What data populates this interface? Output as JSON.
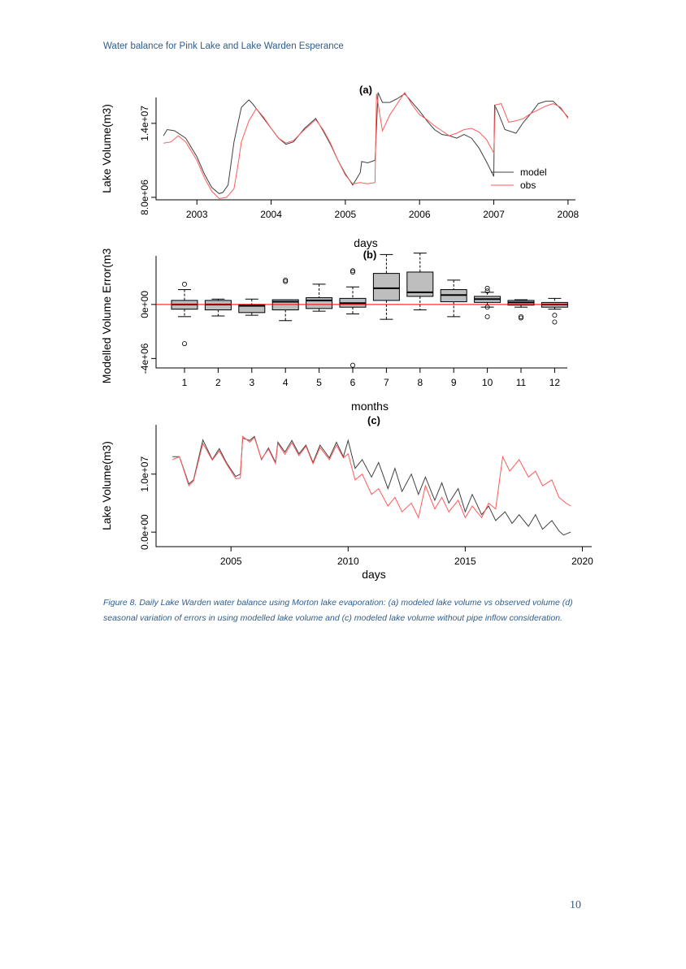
{
  "header": {
    "running_title": "Water balance for Pink Lake and Lake Warden Esperance"
  },
  "caption": {
    "text": "Figure 8. Daily Lake Warden water balance using Morton lake evaporation: (a) modeled lake volume vs observed volume (d) seasonal variation of errors in using modelled lake volume and (c) modeled lake volume without pipe inflow consideration."
  },
  "page": {
    "number": "10"
  },
  "colors": {
    "model": "#404040",
    "obs": "#ff5a5a",
    "box_fill": "#bebebe",
    "reference_line": "#ff0000"
  },
  "chart_data": [
    {
      "type": "line",
      "title": "(a)",
      "xlabel": "days",
      "ylabel": "Lake Volume(m3)",
      "xlim": [
        2002.45,
        2008.1
      ],
      "ylim": [
        7800000,
        16100000
      ],
      "x_ticks": [
        2003,
        2004,
        2005,
        2006,
        2007,
        2008
      ],
      "x_tick_labels": [
        "2003",
        "2004",
        "2005",
        "2006",
        "2007",
        "2008"
      ],
      "y_ticks": [
        8000000,
        14000000
      ],
      "y_tick_labels": [
        "8.0e+06",
        "1.4e+07"
      ],
      "legend": {
        "position": "right",
        "entries": [
          "model",
          "obs"
        ]
      },
      "series": [
        {
          "name": "model",
          "color": "#404040",
          "x": [
            2002.55,
            2002.6,
            2002.7,
            2002.85,
            2003.0,
            2003.1,
            2003.2,
            2003.3,
            2003.35,
            2003.42,
            2003.5,
            2003.6,
            2003.7,
            2003.75,
            2003.8,
            2003.9,
            2004.0,
            2004.1,
            2004.2,
            2004.3,
            2004.45,
            2004.6,
            2004.7,
            2004.8,
            2004.9,
            2005.0,
            2005.1,
            2005.2,
            2005.22,
            2005.3,
            2005.4,
            2005.44,
            2005.5,
            2005.6,
            2005.7,
            2005.8,
            2005.9,
            2006.0,
            2006.1,
            2006.2,
            2006.3,
            2006.4,
            2006.5,
            2006.6,
            2006.7,
            2006.8,
            2006.9,
            2007.0,
            2007.01,
            2007.05,
            2007.15,
            2007.3,
            2007.4,
            2007.5,
            2007.6,
            2007.7,
            2007.8,
            2007.9,
            2008.0
          ],
          "values": [
            13000000,
            13500000,
            13400000,
            12800000,
            11300000,
            9900000,
            8800000,
            8300000,
            8400000,
            9000000,
            12500000,
            15300000,
            15900000,
            15600000,
            15200000,
            14400000,
            13600000,
            12800000,
            12300000,
            12500000,
            13600000,
            14400000,
            13400000,
            12300000,
            11000000,
            9900000,
            9000000,
            10000000,
            10900000,
            10800000,
            11000000,
            16500000,
            15700000,
            15700000,
            16000000,
            16400000,
            15700000,
            15000000,
            14200000,
            13500000,
            13100000,
            13000000,
            12800000,
            13100000,
            12800000,
            12000000,
            10900000,
            9700000,
            15500000,
            15000000,
            13500000,
            13200000,
            14100000,
            14800000,
            15600000,
            15800000,
            15800000,
            15200000,
            14500000
          ]
        },
        {
          "name": "obs",
          "color": "#ff5a5a",
          "x": [
            2002.55,
            2002.65,
            2002.75,
            2002.85,
            2003.0,
            2003.1,
            2003.2,
            2003.3,
            2003.4,
            2003.5,
            2003.55,
            2003.6,
            2003.7,
            2003.8,
            2003.9,
            2004.0,
            2004.1,
            2004.2,
            2004.3,
            2004.45,
            2004.6,
            2004.7,
            2004.8,
            2004.9,
            2005.0,
            2005.1,
            2005.2,
            2005.3,
            2005.4,
            2005.42,
            2005.5,
            2005.6,
            2005.7,
            2005.8,
            2005.9,
            2006.0,
            2006.1,
            2006.2,
            2006.3,
            2006.4,
            2006.5,
            2006.6,
            2006.7,
            2006.8,
            2006.9,
            2007.0,
            2007.02,
            2007.1,
            2007.2,
            2007.3,
            2007.4,
            2007.5,
            2007.6,
            2007.7,
            2007.8,
            2007.9,
            2008.0
          ],
          "values": [
            12400000,
            12500000,
            13000000,
            12500000,
            11000000,
            9600000,
            8500000,
            7900000,
            8000000,
            8700000,
            10500000,
            12500000,
            14200000,
            15200000,
            14500000,
            13600000,
            12800000,
            12400000,
            12600000,
            13500000,
            14300000,
            13500000,
            12400000,
            11000000,
            9800000,
            9100000,
            9200000,
            9100000,
            9200000,
            16400000,
            13400000,
            14700000,
            15600000,
            16500000,
            15500000,
            14700000,
            14300000,
            13800000,
            13400000,
            13000000,
            13200000,
            13500000,
            13600000,
            13300000,
            12700000,
            11600000,
            15500000,
            15600000,
            14100000,
            14200000,
            14400000,
            14800000,
            15100000,
            15400000,
            15600000,
            15300000,
            14400000
          ]
        }
      ]
    },
    {
      "type": "box",
      "title": "(b)",
      "xlabel": "months",
      "ylabel": "Modelled Volume Error(m3",
      "ylim": [
        -4700000,
        3600000
      ],
      "reference_line": 0,
      "y_ticks": [
        -4000000,
        0
      ],
      "y_tick_labels": [
        "-4e+06",
        "0e+00"
      ],
      "categories": [
        "1",
        "2",
        "3",
        "4",
        "5",
        "6",
        "7",
        "8",
        "9",
        "10",
        "11",
        "12"
      ],
      "boxes": [
        {
          "whisker_low": -900000,
          "q1": -350000,
          "median": 0,
          "q3": 300000,
          "whisker_high": 1100000,
          "outliers": [
            1500000,
            -2900000
          ]
        },
        {
          "whisker_low": -850000,
          "q1": -400000,
          "median": 0,
          "q3": 300000,
          "whisker_high": 400000,
          "outliers": []
        },
        {
          "whisker_low": -800000,
          "q1": -600000,
          "median": -100000,
          "q3": 0,
          "whisker_high": 400000,
          "outliers": []
        },
        {
          "whisker_low": -1200000,
          "q1": -400000,
          "median": 200000,
          "q3": 350000,
          "whisker_high": 350000,
          "outliers": [
            1700000,
            1800000
          ]
        },
        {
          "whisker_low": -500000,
          "q1": -300000,
          "median": 300000,
          "q3": 500000,
          "whisker_high": 1500000,
          "outliers": []
        },
        {
          "whisker_low": -700000,
          "q1": -200000,
          "median": 100000,
          "q3": 450000,
          "whisker_high": 1300000,
          "outliers": [
            2400000,
            2500000,
            -4500000
          ]
        },
        {
          "whisker_low": -1100000,
          "q1": 300000,
          "median": 1200000,
          "q3": 2300000,
          "whisker_high": 3700000,
          "outliers": []
        },
        {
          "whisker_low": -400000,
          "q1": 600000,
          "median": 900000,
          "q3": 2400000,
          "whisker_high": 3800000,
          "outliers": []
        },
        {
          "whisker_low": -900000,
          "q1": 200000,
          "median": 700000,
          "q3": 1100000,
          "whisker_high": 1800000,
          "outliers": []
        },
        {
          "whisker_low": -200000,
          "q1": 150000,
          "median": 400000,
          "q3": 600000,
          "whisker_high": 900000,
          "outliers": [
            1200000,
            1000000,
            -200000,
            -900000
          ]
        },
        {
          "whisker_low": -200000,
          "q1": -50000,
          "median": 150000,
          "q3": 300000,
          "whisker_high": 350000,
          "outliers": [
            -900000,
            -1000000
          ]
        },
        {
          "whisker_low": -350000,
          "q1": -200000,
          "median": 0,
          "q3": 150000,
          "whisker_high": 450000,
          "outliers": [
            -800000,
            -1300000
          ]
        }
      ]
    },
    {
      "type": "line",
      "title": "(c)",
      "xlabel": "days",
      "ylabel": "Lake Volume(m3)",
      "xlim": [
        2001.8,
        2020.4
      ],
      "ylim": [
        -2500000,
        18500000
      ],
      "x_ticks": [
        2005,
        2010,
        2015,
        2020
      ],
      "x_tick_labels": [
        "2005",
        "2010",
        "2015",
        "2020"
      ],
      "y_ticks": [
        0,
        10000000
      ],
      "y_tick_labels": [
        "0.0e+00",
        "1.0e+07"
      ],
      "series": [
        {
          "name": "model",
          "color": "#404040",
          "x": [
            2002.5,
            2002.8,
            2003.2,
            2003.4,
            2003.8,
            2004.2,
            2004.5,
            2004.8,
            2005.2,
            2005.4,
            2005.5,
            2005.8,
            2006.0,
            2006.3,
            2006.6,
            2006.9,
            2007.0,
            2007.3,
            2007.6,
            2007.9,
            2008.2,
            2008.5,
            2008.8,
            2009.2,
            2009.5,
            2009.8,
            2010.0,
            2010.3,
            2010.6,
            2011.0,
            2011.3,
            2011.7,
            2012.0,
            2012.3,
            2012.7,
            2013.0,
            2013.3,
            2013.7,
            2014.0,
            2014.3,
            2014.7,
            2015.0,
            2015.3,
            2015.7,
            2016.0,
            2016.3,
            2016.7,
            2017.0,
            2017.3,
            2017.7,
            2018.0,
            2018.3,
            2018.7,
            2019.0,
            2019.2,
            2019.5
          ],
          "values": [
            13000000,
            13000000,
            8300000,
            9000000,
            15900000,
            12500000,
            14400000,
            12000000,
            9600000,
            10000000,
            16200000,
            15800000,
            16500000,
            12500000,
            14500000,
            12000000,
            15500000,
            13800000,
            15800000,
            13500000,
            15000000,
            12000000,
            15000000,
            12800000,
            15500000,
            13000000,
            15800000,
            11000000,
            12500000,
            9500000,
            12000000,
            7500000,
            11000000,
            7000000,
            10000000,
            6500000,
            9500000,
            5500000,
            8500000,
            5000000,
            7500000,
            3500000,
            6500000,
            3000000,
            4500000,
            2000000,
            3500000,
            1500000,
            3000000,
            1000000,
            3000000,
            500000,
            2000000,
            200000,
            -500000,
            0
          ]
        },
        {
          "name": "obs",
          "color": "#ff5a5a",
          "x": [
            2002.5,
            2002.8,
            2003.2,
            2003.4,
            2003.8,
            2004.2,
            2004.5,
            2004.8,
            2005.2,
            2005.4,
            2005.5,
            2005.8,
            2006.0,
            2006.3,
            2006.6,
            2006.9,
            2007.0,
            2007.3,
            2007.6,
            2007.9,
            2008.2,
            2008.5,
            2008.8,
            2009.2,
            2009.5,
            2009.8,
            2010.0,
            2010.3,
            2010.6,
            2011.0,
            2011.3,
            2011.7,
            2012.0,
            2012.3,
            2012.7,
            2013.0,
            2013.3,
            2013.7,
            2014.0,
            2014.3,
            2014.7,
            2015.0,
            2015.3,
            2015.7,
            2016.0,
            2016.3,
            2016.6,
            2016.9,
            2017.3,
            2017.7,
            2018.0,
            2018.3,
            2018.7,
            2019.0,
            2019.3,
            2019.5
          ],
          "values": [
            12500000,
            13000000,
            8000000,
            8800000,
            15300000,
            12400000,
            14000000,
            11800000,
            9200000,
            9300000,
            16500000,
            15500000,
            16300000,
            12600000,
            14300000,
            11800000,
            15300000,
            13400000,
            15400000,
            13200000,
            14800000,
            11800000,
            14600000,
            12500000,
            15000000,
            12800000,
            13500000,
            9000000,
            10000000,
            6500000,
            7500000,
            4500000,
            6000000,
            3500000,
            5000000,
            2500000,
            8000000,
            4000000,
            6000000,
            3500000,
            5500000,
            2500000,
            4500000,
            2500000,
            5000000,
            4000000,
            13000000,
            10500000,
            12500000,
            9500000,
            10500000,
            8000000,
            9000000,
            6000000,
            5000000,
            4500000
          ]
        }
      ]
    }
  ]
}
